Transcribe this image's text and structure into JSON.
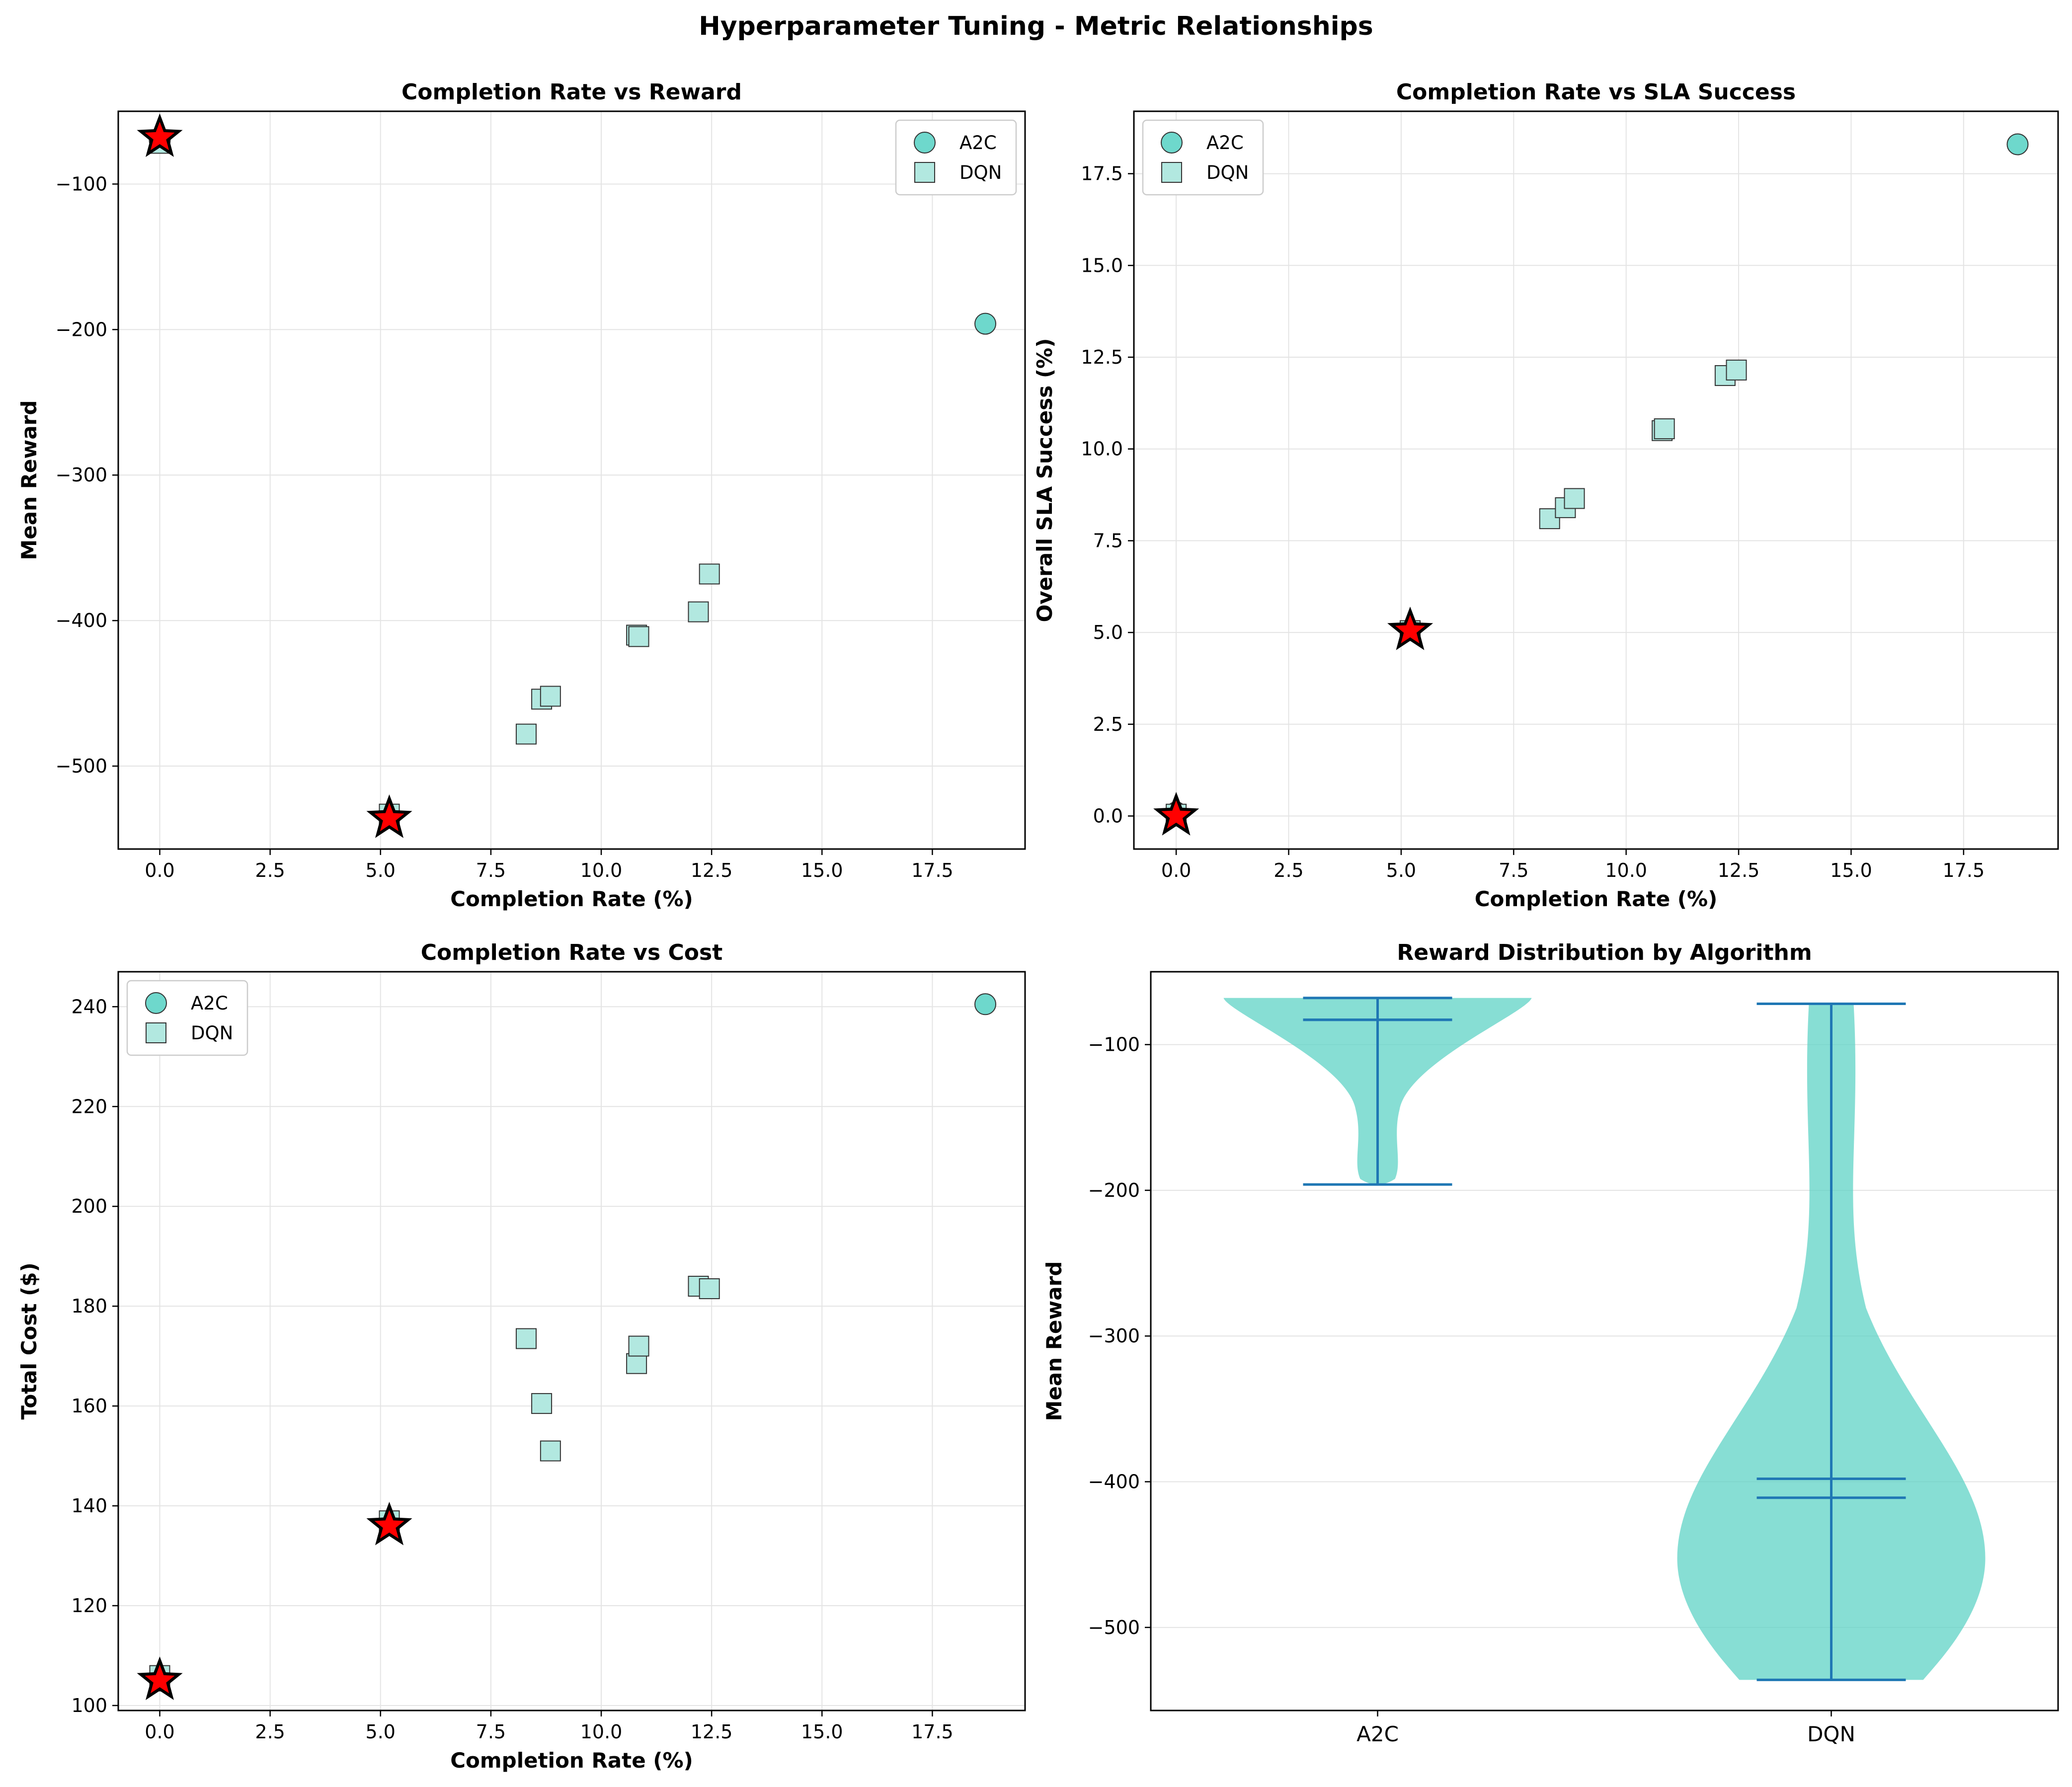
{
  "figure_title": "Hyperparameter Tuning - Metric Relationships",
  "colors": {
    "a2c_fill": "#6ed8cc",
    "dqn_fill": "#b2e8e0",
    "marker_edge": "#333333",
    "star_fill": "#ff0000",
    "violin_fill": "#5fd3c6",
    "violin_line": "#1f77b4",
    "grid": "#e4e4e4"
  },
  "chart_data": [
    {
      "type": "scatter",
      "title": "Completion Rate vs Reward",
      "xlabel": "Completion Rate (%)",
      "ylabel": "Mean Reward",
      "xlim": [
        -0.94,
        19.6
      ],
      "ylim": [
        -557,
        -50
      ],
      "xticks": [
        0,
        2.5,
        5,
        7.5,
        10,
        12.5,
        15,
        17.5
      ],
      "xtick_labels": [
        "0.0",
        "2.5",
        "5.0",
        "7.5",
        "10.0",
        "12.5",
        "15.0",
        "17.5"
      ],
      "yticks": [
        -100,
        -200,
        -300,
        -400,
        -500
      ],
      "ytick_labels": [
        "−100",
        "−200",
        "−300",
        "−400",
        "−500"
      ],
      "legend": {
        "position": "upper right",
        "entries": [
          "A2C",
          "DQN"
        ]
      },
      "grid": true,
      "series": [
        {
          "name": "A2C",
          "marker": "circle",
          "x": [
            18.7,
            0.0
          ],
          "y": [
            -196,
            -70
          ]
        },
        {
          "name": "DQN",
          "marker": "square",
          "x": [
            8.3,
            8.65,
            8.85,
            10.8,
            10.85,
            12.2,
            12.45,
            5.2,
            0.0
          ],
          "y": [
            -478,
            -454,
            -452,
            -410,
            -411,
            -394,
            -368,
            -533,
            -72
          ]
        }
      ],
      "highlights": {
        "marker": "star",
        "x": [
          0.0,
          5.2
        ],
        "y": [
          -68,
          -536
        ]
      }
    },
    {
      "type": "scatter",
      "title": "Completion Rate vs SLA Success",
      "xlabel": "Completion Rate (%)",
      "ylabel": "Overall SLA Success (%)",
      "xlim": [
        -0.94,
        19.6
      ],
      "ylim": [
        -0.9,
        19.2
      ],
      "xticks": [
        0,
        2.5,
        5,
        7.5,
        10,
        12.5,
        15,
        17.5
      ],
      "xtick_labels": [
        "0.0",
        "2.5",
        "5.0",
        "7.5",
        "10.0",
        "12.5",
        "15.0",
        "17.5"
      ],
      "yticks": [
        0,
        2.5,
        5,
        7.5,
        10,
        12.5,
        15,
        17.5
      ],
      "ytick_labels": [
        "0.0",
        "2.5",
        "5.0",
        "7.5",
        "10.0",
        "12.5",
        "15.0",
        "17.5"
      ],
      "legend": {
        "position": "upper left",
        "entries": [
          "A2C",
          "DQN"
        ]
      },
      "grid": true,
      "series": [
        {
          "name": "A2C",
          "marker": "circle",
          "x": [
            18.7,
            0.0
          ],
          "y": [
            18.3,
            0.1
          ]
        },
        {
          "name": "DQN",
          "marker": "square",
          "x": [
            8.3,
            8.65,
            8.85,
            10.8,
            10.85,
            12.2,
            12.45,
            5.2,
            0.0
          ],
          "y": [
            8.1,
            8.4,
            8.65,
            10.5,
            10.55,
            12.0,
            12.15,
            5.05,
            0.05
          ]
        }
      ],
      "highlights": {
        "marker": "star",
        "x": [
          0.0,
          5.2
        ],
        "y": [
          0.0,
          5.05
        ]
      }
    },
    {
      "type": "scatter",
      "title": "Completion Rate vs Cost",
      "xlabel": "Completion Rate (%)",
      "ylabel": "Total Cost ($)",
      "xlim": [
        -0.94,
        19.6
      ],
      "ylim": [
        99,
        247
      ],
      "xticks": [
        0,
        2.5,
        5,
        7.5,
        10,
        12.5,
        15,
        17.5
      ],
      "xtick_labels": [
        "0.0",
        "2.5",
        "5.0",
        "7.5",
        "10.0",
        "12.5",
        "15.0",
        "17.5"
      ],
      "yticks": [
        100,
        120,
        140,
        160,
        180,
        200,
        220,
        240
      ],
      "ytick_labels": [
        "100",
        "120",
        "140",
        "160",
        "180",
        "200",
        "220",
        "240"
      ],
      "legend": {
        "position": "upper left",
        "entries": [
          "A2C",
          "DQN"
        ]
      },
      "grid": true,
      "series": [
        {
          "name": "A2C",
          "marker": "circle",
          "x": [
            18.7,
            0.0
          ],
          "y": [
            240.5,
            105
          ]
        },
        {
          "name": "DQN",
          "marker": "square",
          "x": [
            8.3,
            8.65,
            8.85,
            10.8,
            10.85,
            12.2,
            12.45,
            5.2,
            0.0
          ],
          "y": [
            173.5,
            160.5,
            151,
            168.5,
            172,
            184,
            183.5,
            137,
            106
          ]
        }
      ],
      "highlights": {
        "marker": "star",
        "x": [
          0.0,
          5.2
        ],
        "y": [
          105,
          136
        ]
      }
    },
    {
      "type": "violin",
      "title": "Reward Distribution by Algorithm",
      "xlabel": "",
      "ylabel": "Mean Reward",
      "ylim": [
        -557,
        -50
      ],
      "yticks": [
        -100,
        -200,
        -300,
        -400,
        -500
      ],
      "ytick_labels": [
        "−100",
        "−200",
        "−300",
        "−400",
        "−500"
      ],
      "categories": [
        "A2C",
        "DQN"
      ],
      "grid": true,
      "series": [
        {
          "name": "A2C",
          "min": -196,
          "max": -68,
          "mean": -83,
          "median": -83
        },
        {
          "name": "DQN",
          "min": -536,
          "max": -72,
          "mean": -398,
          "median": -411
        }
      ]
    }
  ]
}
